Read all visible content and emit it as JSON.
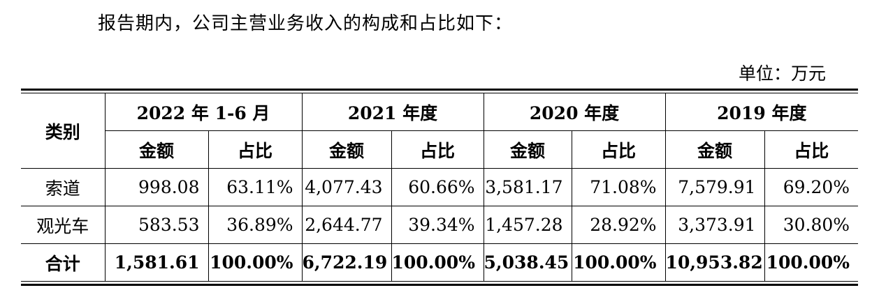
{
  "intro_text": "报告期内，公司主营业务收入的构成和占比如下：",
  "unit_text": "单位：万元",
  "table": {
    "category_header": "类别",
    "periods": [
      "2022 年 1-6 月",
      "2021 年度",
      "2020 年度",
      "2019 年度"
    ],
    "sub_headers": {
      "amount": "金额",
      "ratio": "占比"
    },
    "rows": [
      {
        "category": "索道",
        "cells": [
          "998.08",
          "63.11%",
          "4,077.43",
          "60.66%",
          "3,581.17",
          "71.08%",
          "7,579.91",
          "69.20%"
        ]
      },
      {
        "category": "观光车",
        "cells": [
          "583.53",
          "36.89%",
          "2,644.77",
          "39.34%",
          "1,457.28",
          "28.92%",
          "3,373.91",
          "30.80%"
        ]
      },
      {
        "category": "合计",
        "cells": [
          "1,581.61",
          "100.00%",
          "6,722.19",
          "100.00%",
          "5,038.45",
          "100.00%",
          "10,953.82",
          "100.00%"
        ]
      }
    ]
  }
}
